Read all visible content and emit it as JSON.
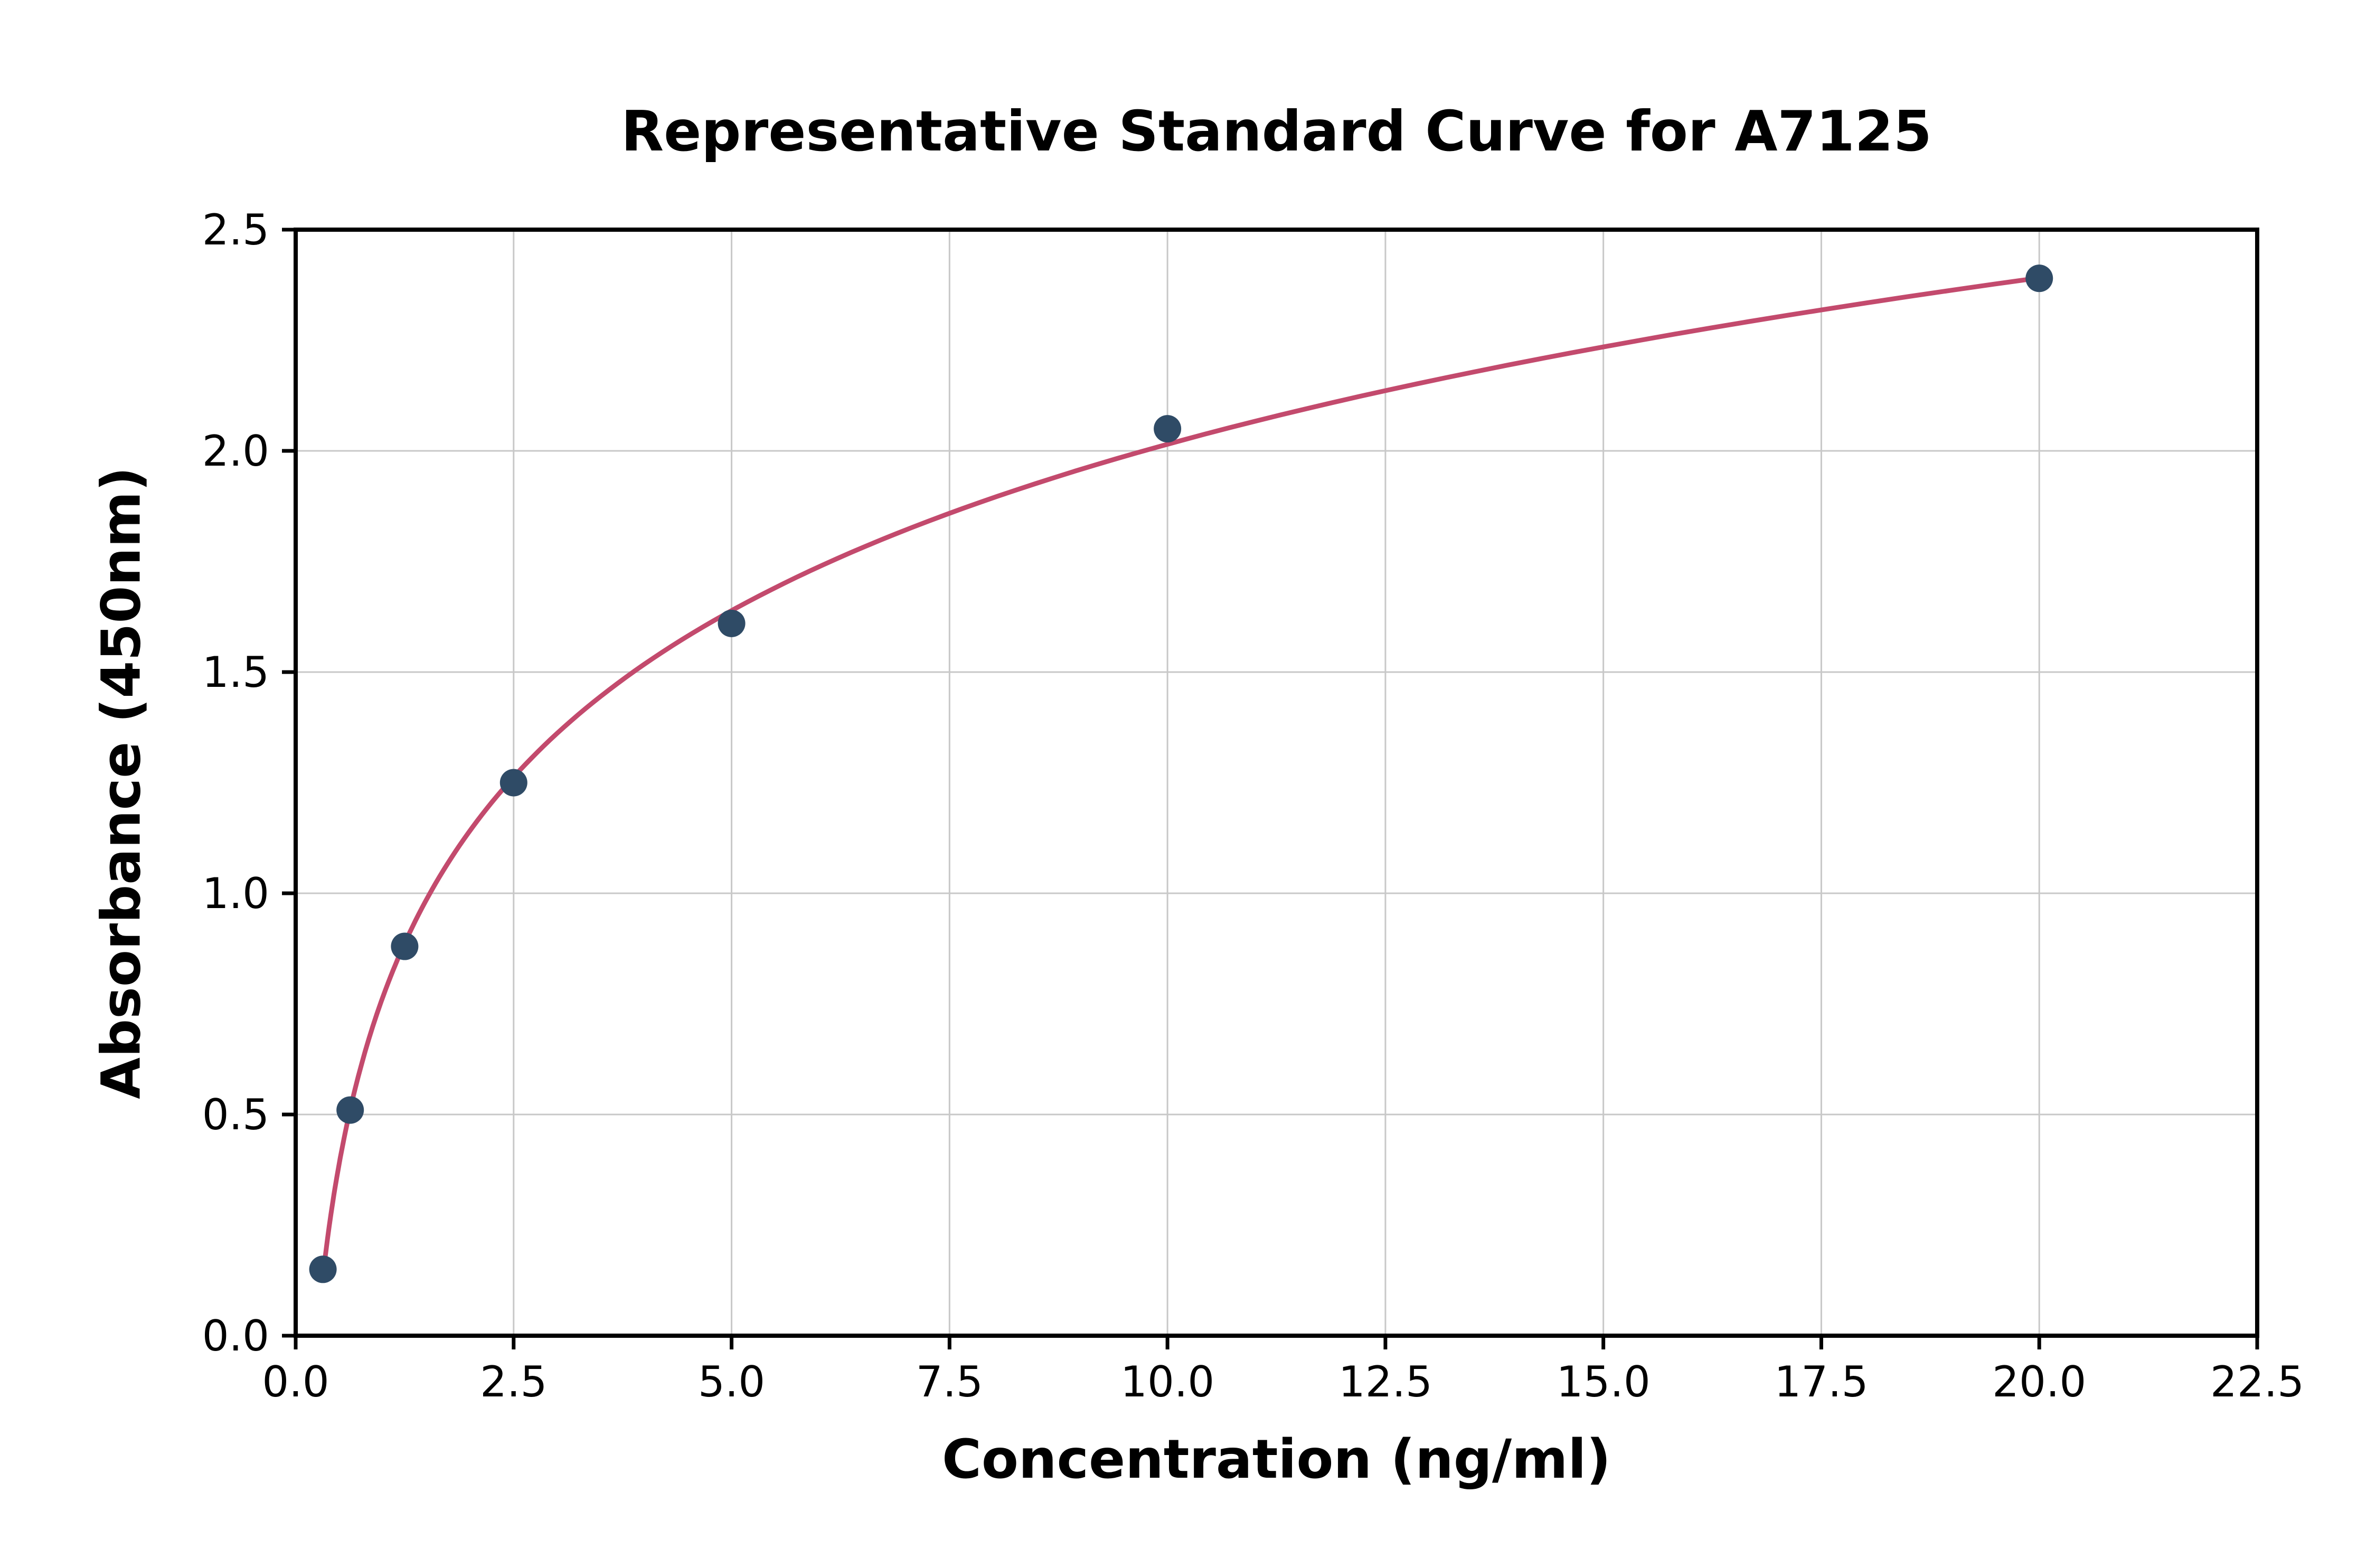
{
  "chart_data": {
    "type": "scatter",
    "title": "Representative Standard Curve for A7125",
    "xlabel": "Concentration (ng/ml)",
    "ylabel": "Absorbance (450nm)",
    "xlim": [
      0,
      22.5
    ],
    "ylim": [
      0,
      2.5
    ],
    "grid": true,
    "legend_position": "none",
    "xticks": [
      0,
      2.5,
      5,
      7.5,
      10,
      12.5,
      15,
      17.5,
      20,
      22.5
    ],
    "xtick_labels": [
      "0.0",
      "2.5",
      "5.0",
      "7.5",
      "10.0",
      "12.5",
      "15.0",
      "17.5",
      "20.0",
      "22.5"
    ],
    "yticks": [
      0,
      0.5,
      1,
      1.5,
      2,
      2.5
    ],
    "ytick_labels": [
      "0.0",
      "0.5",
      "1.0",
      "1.5",
      "2.0",
      "2.5"
    ],
    "points": {
      "x": [
        0.3125,
        0.625,
        1.25,
        2.5,
        5,
        10,
        20
      ],
      "y": [
        0.15,
        0.51,
        0.88,
        1.25,
        1.61,
        2.05,
        2.39
      ]
    },
    "fit_curve": {
      "type": "logarithmic",
      "x_start": 0.3125,
      "x_end": 20
    },
    "colors": {
      "points": "#2f4b66",
      "curve": "#c34a6d",
      "grid": "#c8c8c8",
      "axis": "#000000",
      "background": "#ffffff"
    }
  }
}
